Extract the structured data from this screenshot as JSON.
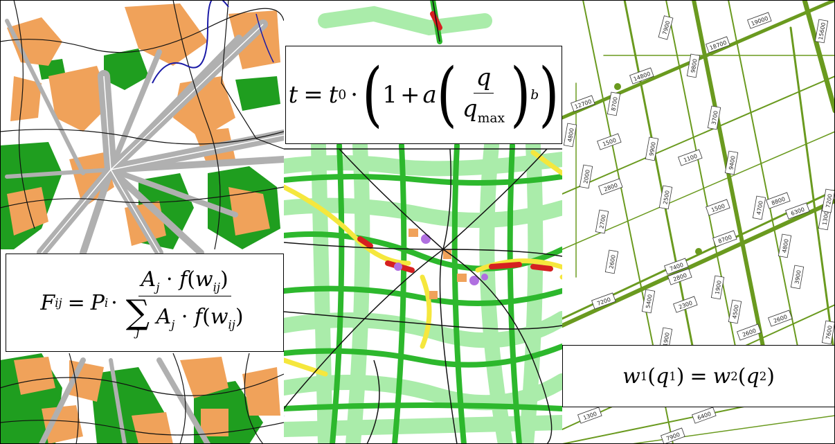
{
  "formulas": {
    "gravity": {
      "F": "F",
      "F_sub": "ij",
      "eq": "=",
      "P": "P",
      "P_sub": "i",
      "dot": "·",
      "num_A": "A",
      "num_A_sub": "j",
      "num_f": "f",
      "num_w": "w",
      "num_w_sub": "ij",
      "sigma": "∑",
      "sigma_idx": "j",
      "den_A": "A",
      "den_A_sub": "j",
      "den_f": "f",
      "den_w": "w",
      "den_w_sub": "ij"
    },
    "bpr": {
      "t": "t",
      "eq": "=",
      "t0": "t",
      "t0_sub": "0",
      "dot": "·",
      "one": "1",
      "plus": "+",
      "a": "a",
      "q": "q",
      "qmax": "q",
      "qmax_sub": "max",
      "b": "b"
    },
    "equilibrium": {
      "w1": "w",
      "w1_sub": "1",
      "q1": "q",
      "q1_sub": "1",
      "eq": "=",
      "w2": "w",
      "w2_sub": "2",
      "q2": "q",
      "q2_sub": "2"
    }
  },
  "volume_labels": [
    "7900",
    "19000",
    "15600",
    "18700",
    "14800",
    "9800",
    "12700",
    "8700",
    "3700",
    "4800",
    "1500",
    "9900",
    "1100",
    "9400",
    "2000",
    "2800",
    "2500",
    "1500",
    "4700",
    "8800",
    "6300",
    "1300",
    "2700",
    "7200",
    "8700",
    "4800",
    "2600",
    "7400",
    "2800",
    "1900",
    "7200",
    "5400",
    "2300",
    "4500",
    "3900",
    "2600",
    "7600",
    "1900",
    "2600",
    "1300",
    "6400",
    "7900"
  ],
  "colors": {
    "landuse_orange": "#f0a25a",
    "landuse_green": "#1f9e1f",
    "flow_gray": "#b0b0b0",
    "water_blue": "#1a1aa6",
    "network_green": "#2db82d",
    "congestion_yellow": "#f5e73d",
    "congestion_red": "#d62020",
    "congestion_violet": "#b070e0",
    "road_olive": "#6a9a1f"
  }
}
